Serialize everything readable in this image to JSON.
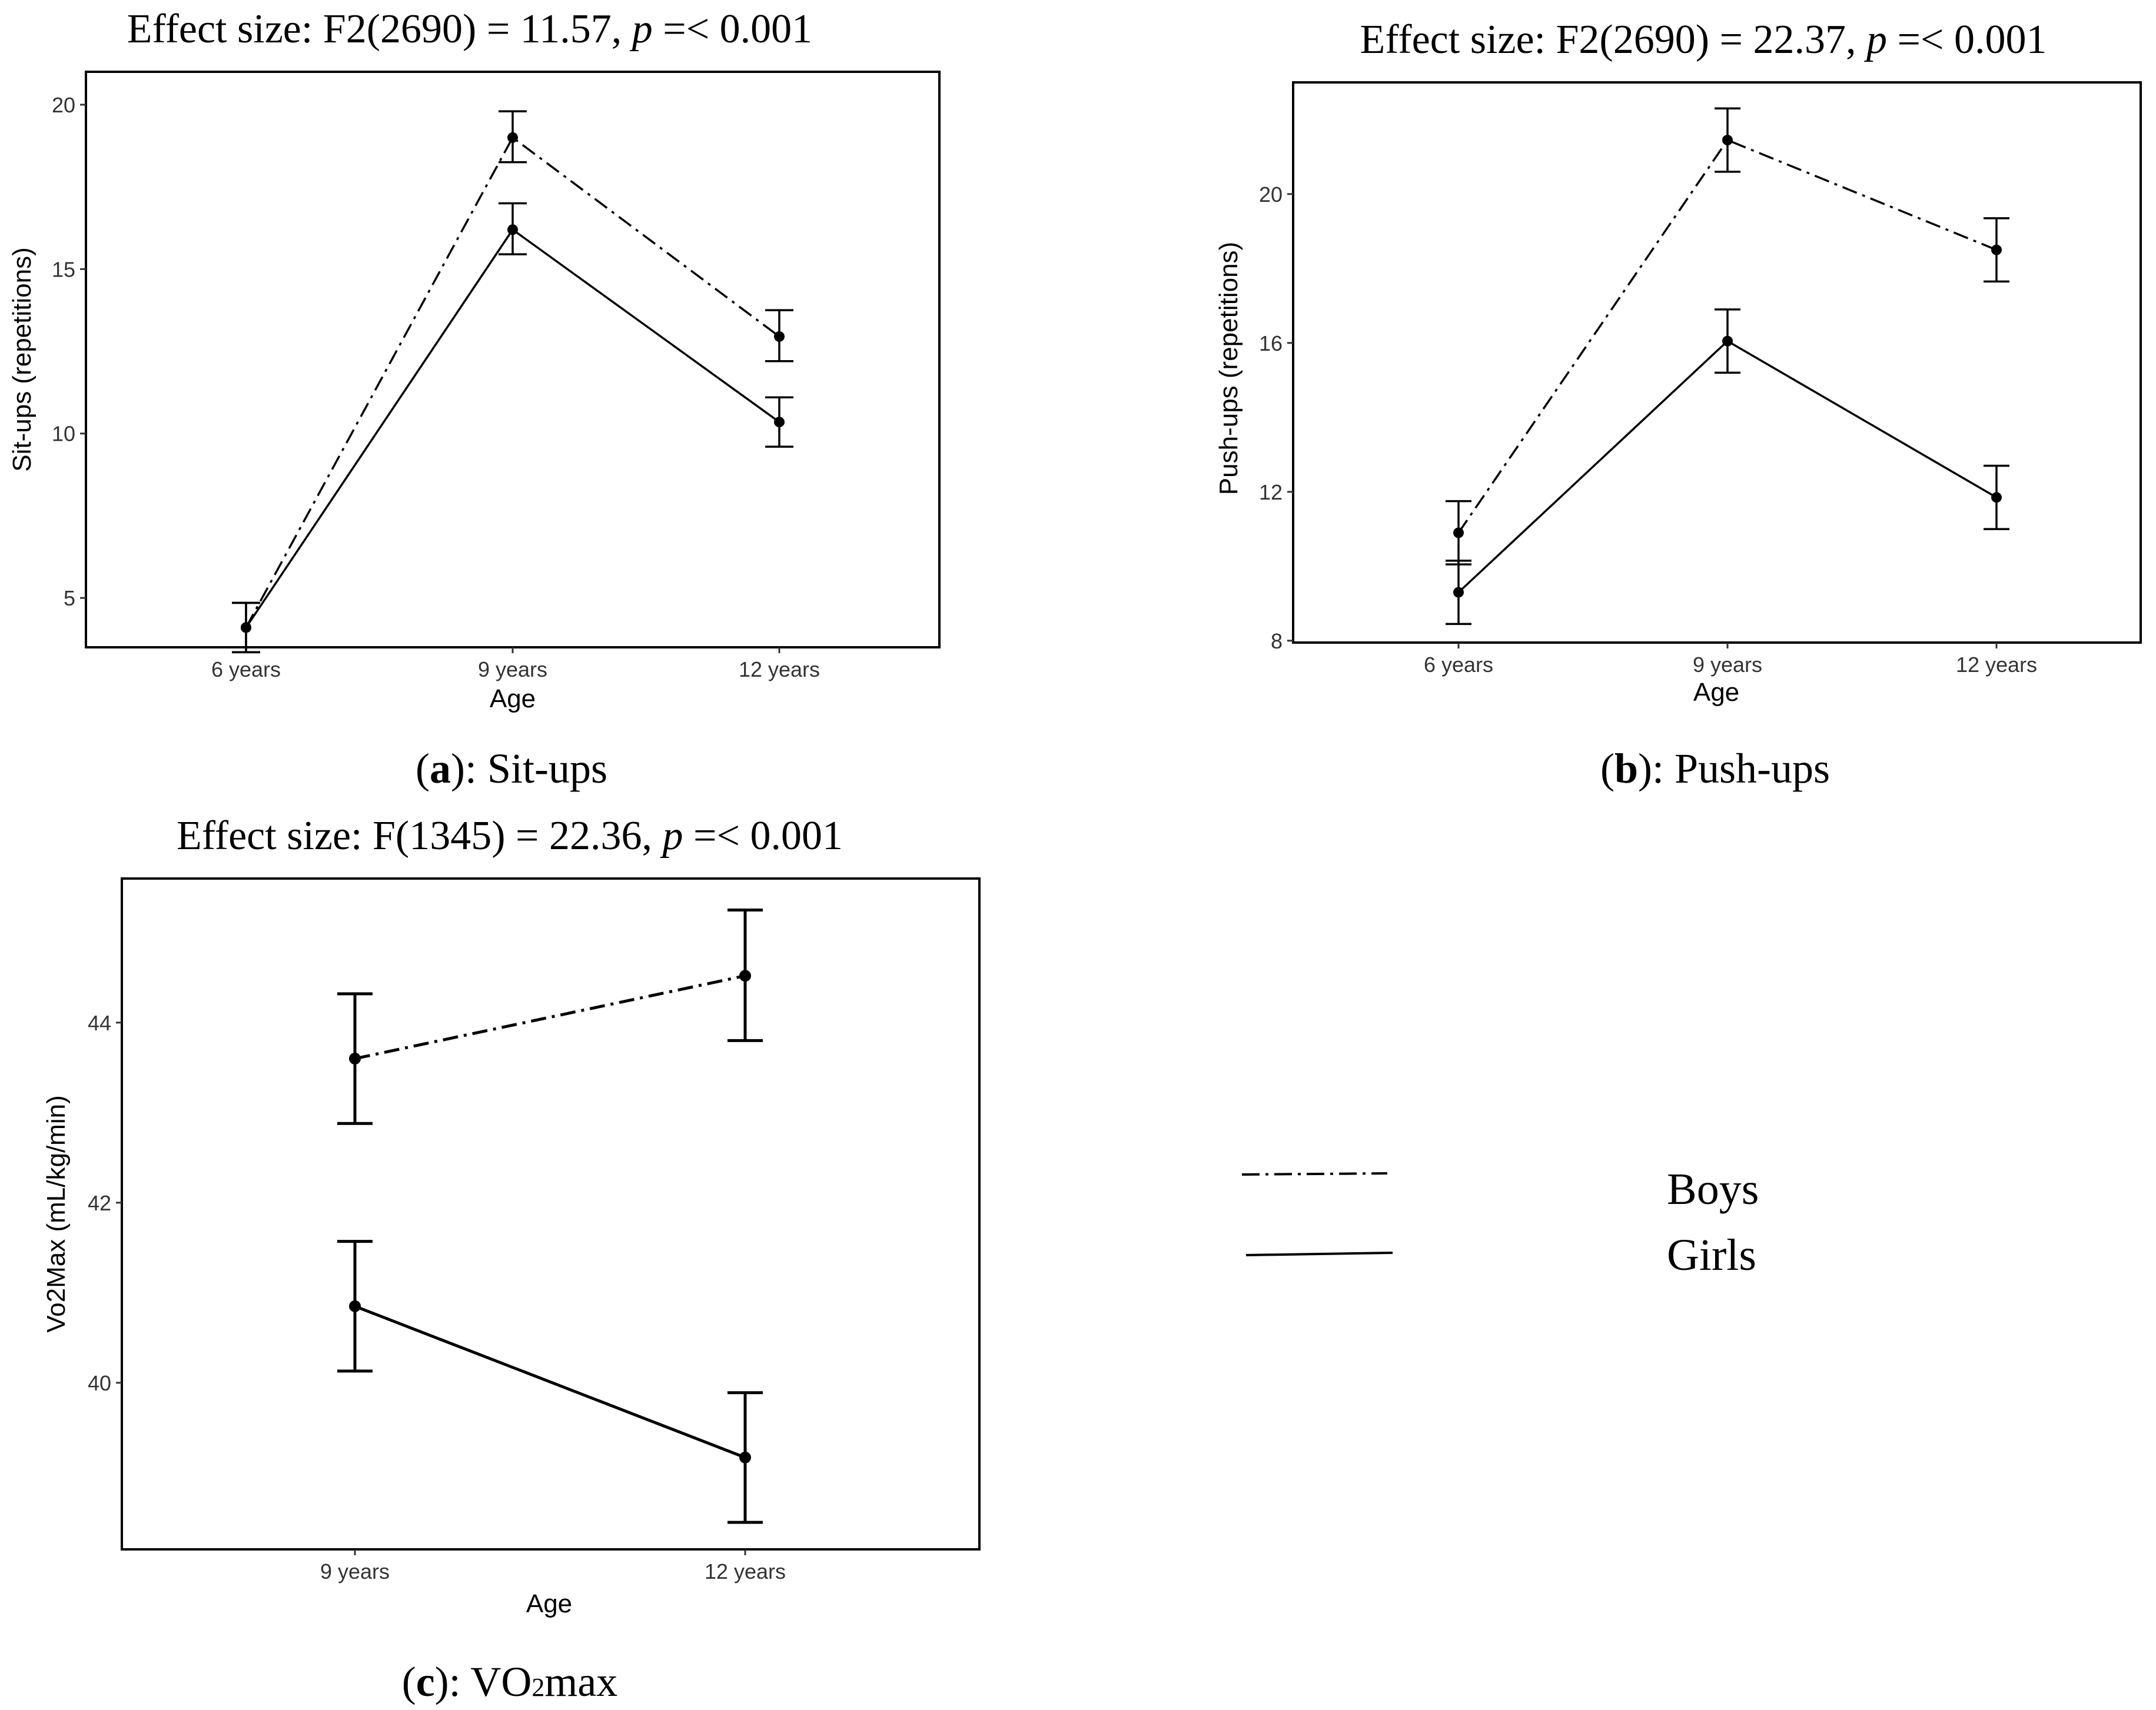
{
  "chart_data": [
    {
      "type": "line",
      "panel": "a",
      "title_prefix": "Effect size: F2(2690) = 11.57, ",
      "title_p": "p",
      "title_suffix": " =< 0.001",
      "caption_open": "(",
      "caption_letter": "a",
      "caption_rest": "): Sit-ups",
      "xlabel": "Age",
      "ylabel": "Sit-ups (repetitions)",
      "categories": [
        "6 years",
        "9 years",
        "12 years"
      ],
      "ylim": [
        3.5,
        21
      ],
      "yticks": [
        5,
        10,
        15,
        20
      ],
      "series": [
        {
          "name": "Boys",
          "values": [
            4.1,
            19.0,
            12.95
          ],
          "lower": [
            3.35,
            18.25,
            12.2
          ],
          "upper": [
            4.85,
            19.8,
            13.75
          ]
        },
        {
          "name": "Girls",
          "values": [
            4.1,
            16.2,
            10.35
          ],
          "lower": [
            3.35,
            15.45,
            9.6
          ],
          "upper": [
            4.85,
            17.0,
            11.1
          ]
        }
      ]
    },
    {
      "type": "line",
      "panel": "b",
      "title_prefix": "Effect size: F2(2690) = 22.37, ",
      "title_p": "p",
      "title_suffix": " =< 0.001",
      "caption_open": "(",
      "caption_letter": "b",
      "caption_rest": "): Push-ups",
      "xlabel": "Age",
      "ylabel": "Push-ups (repetitions)",
      "categories": [
        "6 years",
        "9 years",
        "12 years"
      ],
      "ylim": [
        7.95,
        23.0
      ],
      "yticks": [
        8,
        12,
        16,
        20
      ],
      "series": [
        {
          "name": "Boys",
          "values": [
            10.9,
            21.45,
            18.5
          ],
          "lower": [
            10.05,
            20.6,
            17.65
          ],
          "upper": [
            11.75,
            22.3,
            19.35
          ]
        },
        {
          "name": "Girls",
          "values": [
            9.3,
            16.05,
            11.85
          ],
          "lower": [
            8.45,
            15.2,
            11.0
          ],
          "upper": [
            10.15,
            16.9,
            12.7
          ]
        }
      ]
    },
    {
      "type": "line",
      "panel": "c",
      "title_prefix": "Effect size: F(1345) = 22.36, ",
      "title_p": "p",
      "title_suffix": " =< 0.001",
      "caption_open": "(",
      "caption_letter": "c",
      "caption_rest": "): VO",
      "caption_sub": "2",
      "caption_end": "max",
      "xlabel": "Age",
      "ylabel": "Vo2Max (mL/kg/min)",
      "categories": [
        "9 years",
        "12 years"
      ],
      "ylim": [
        38.15,
        45.6
      ],
      "yticks": [
        40,
        42,
        44
      ],
      "series": [
        {
          "name": "Boys",
          "values": [
            43.6,
            44.52
          ],
          "lower": [
            42.88,
            43.8
          ],
          "upper": [
            44.32,
            45.25
          ]
        },
        {
          "name": "Girls",
          "values": [
            40.85,
            39.17
          ],
          "lower": [
            40.13,
            38.45
          ],
          "upper": [
            41.57,
            39.89
          ]
        }
      ]
    }
  ],
  "legend": {
    "items": [
      {
        "label": "Boys",
        "style": "dash-dot"
      },
      {
        "label": "Girls",
        "style": "solid"
      }
    ]
  }
}
